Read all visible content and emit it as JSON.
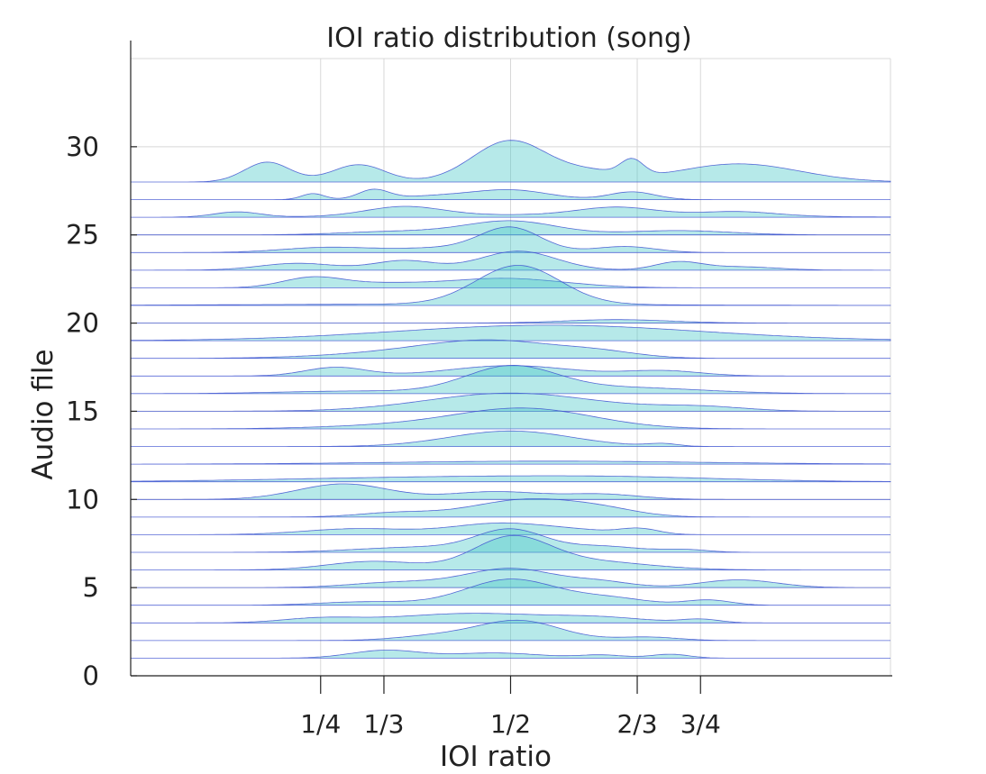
{
  "chart_data": {
    "type": "area",
    "subtype": "ridgeline",
    "title": "IOI ratio distribution (song)",
    "xlabel": "IOI ratio",
    "ylabel": "Audio file",
    "xlim": [
      0,
      1
    ],
    "ylim": [
      0,
      35
    ],
    "x_ticks": [
      {
        "value": 0.25,
        "label": "1/4"
      },
      {
        "value": 0.3333,
        "label": "1/3"
      },
      {
        "value": 0.5,
        "label": "1/2"
      },
      {
        "value": 0.6667,
        "label": "2/3"
      },
      {
        "value": 0.75,
        "label": "3/4"
      }
    ],
    "y_ticks": [
      0,
      5,
      10,
      15,
      20,
      25,
      30
    ],
    "grid": true,
    "fill_color": "#40c4c4",
    "line_color": "#3c50d0",
    "series": [
      {
        "file": 1,
        "peaks": [
          [
            0.335,
            0.045,
            0.9
          ],
          [
            0.48,
            0.06,
            0.6
          ],
          [
            0.62,
            0.03,
            0.35
          ],
          [
            0.71,
            0.025,
            0.45
          ]
        ]
      },
      {
        "file": 2,
        "peaks": [
          [
            0.51,
            0.055,
            2.3
          ],
          [
            0.4,
            0.05,
            0.5
          ],
          [
            0.68,
            0.04,
            0.4
          ]
        ]
      },
      {
        "file": 3,
        "peaks": [
          [
            0.25,
            0.05,
            0.5
          ],
          [
            0.45,
            0.1,
            1.1
          ],
          [
            0.62,
            0.06,
            0.5
          ],
          [
            0.75,
            0.025,
            0.4
          ]
        ]
      },
      {
        "file": 4,
        "peaks": [
          [
            0.5,
            0.06,
            3.0
          ],
          [
            0.31,
            0.06,
            0.4
          ],
          [
            0.63,
            0.05,
            0.8
          ],
          [
            0.76,
            0.03,
            0.6
          ]
        ]
      },
      {
        "file": 5,
        "peaks": [
          [
            0.5,
            0.06,
            2.2
          ],
          [
            0.62,
            0.04,
            0.6
          ],
          [
            0.8,
            0.05,
            0.9
          ],
          [
            0.35,
            0.06,
            0.6
          ]
        ]
      },
      {
        "file": 6,
        "peaks": [
          [
            0.5,
            0.05,
            3.5
          ],
          [
            0.6,
            0.08,
            1.0
          ],
          [
            0.32,
            0.06,
            1.0
          ]
        ]
      },
      {
        "file": 7,
        "peaks": [
          [
            0.5,
            0.045,
            2.5
          ],
          [
            0.38,
            0.08,
            0.6
          ],
          [
            0.62,
            0.05,
            0.7
          ],
          [
            0.73,
            0.03,
            0.3
          ]
        ]
      },
      {
        "file": 8,
        "peaks": [
          [
            0.3,
            0.07,
            0.7
          ],
          [
            0.48,
            0.06,
            1.2
          ],
          [
            0.67,
            0.025,
            0.6
          ],
          [
            0.58,
            0.06,
            0.5
          ]
        ]
      },
      {
        "file": 9,
        "peaks": [
          [
            0.52,
            0.07,
            2.0
          ],
          [
            0.62,
            0.05,
            0.7
          ],
          [
            0.35,
            0.05,
            0.5
          ]
        ]
      },
      {
        "file": 10,
        "peaks": [
          [
            0.28,
            0.06,
            1.8
          ],
          [
            0.48,
            0.06,
            0.9
          ],
          [
            0.62,
            0.05,
            0.6
          ]
        ]
      },
      {
        "file": 11,
        "peaks": [
          [
            0.4,
            0.2,
            0.5
          ],
          [
            0.65,
            0.15,
            0.4
          ]
        ]
      },
      {
        "file": 12,
        "peaks": [
          [
            0.55,
            0.2,
            0.35
          ]
        ]
      },
      {
        "file": 13,
        "peaks": [
          [
            0.5,
            0.08,
            1.8
          ],
          [
            0.7,
            0.02,
            0.3
          ]
        ]
      },
      {
        "file": 14,
        "peaks": [
          [
            0.52,
            0.09,
            2.3
          ],
          [
            0.36,
            0.1,
            0.4
          ]
        ]
      },
      {
        "file": 15,
        "peaks": [
          [
            0.5,
            0.11,
            2.1
          ],
          [
            0.75,
            0.06,
            0.5
          ]
        ]
      },
      {
        "file": 16,
        "peaks": [
          [
            0.5,
            0.06,
            3.0
          ],
          [
            0.65,
            0.1,
            0.7
          ],
          [
            0.3,
            0.1,
            0.3
          ]
        ]
      },
      {
        "file": 17,
        "peaks": [
          [
            0.27,
            0.04,
            1.0
          ],
          [
            0.5,
            0.08,
            1.2
          ],
          [
            0.7,
            0.05,
            0.6
          ]
        ]
      },
      {
        "file": 18,
        "peaks": [
          [
            0.48,
            0.09,
            1.9
          ],
          [
            0.62,
            0.05,
            0.5
          ],
          [
            0.35,
            0.1,
            0.5
          ]
        ]
      },
      {
        "file": 19,
        "peaks": [
          [
            0.55,
            0.2,
            1.8
          ]
        ]
      },
      {
        "file": 20,
        "peaks": [
          [
            0.64,
            0.07,
            0.4
          ]
        ]
      },
      {
        "file": 21,
        "peaks": [
          [
            0.51,
            0.055,
            4.5
          ],
          [
            0.4,
            0.25,
            0.15
          ]
        ]
      },
      {
        "file": 22,
        "peaks": [
          [
            0.24,
            0.04,
            1.2
          ],
          [
            0.33,
            0.05,
            0.4
          ],
          [
            0.49,
            0.08,
            1.1
          ]
        ]
      },
      {
        "file": 23,
        "peaks": [
          [
            0.36,
            0.04,
            1.1
          ],
          [
            0.22,
            0.05,
            0.8
          ],
          [
            0.51,
            0.05,
            2.2
          ],
          [
            0.72,
            0.03,
            0.9
          ],
          [
            0.8,
            0.05,
            0.4
          ]
        ]
      },
      {
        "file": 24,
        "peaks": [
          [
            0.5,
            0.04,
            2.8
          ],
          [
            0.26,
            0.06,
            0.6
          ],
          [
            0.41,
            0.06,
            0.5
          ],
          [
            0.65,
            0.04,
            0.7
          ]
        ]
      },
      {
        "file": 25,
        "peaks": [
          [
            0.5,
            0.06,
            1.6
          ],
          [
            0.35,
            0.07,
            0.4
          ],
          [
            0.72,
            0.07,
            0.5
          ]
        ]
      },
      {
        "file": 26,
        "peaks": [
          [
            0.14,
            0.03,
            0.6
          ],
          [
            0.36,
            0.05,
            1.1
          ],
          [
            0.64,
            0.05,
            0.9
          ],
          [
            0.58,
            0.2,
            0.3
          ],
          [
            0.8,
            0.05,
            0.5
          ]
        ]
      },
      {
        "file": 27,
        "peaks": [
          [
            0.24,
            0.015,
            0.7
          ],
          [
            0.32,
            0.02,
            1.1
          ],
          [
            0.4,
            0.05,
            0.4
          ],
          [
            0.5,
            0.05,
            1.1
          ],
          [
            0.66,
            0.03,
            0.9
          ]
        ]
      },
      {
        "file": 28,
        "peaks": [
          [
            0.18,
            0.03,
            2.3
          ],
          [
            0.3,
            0.035,
            2.0
          ],
          [
            0.5,
            0.05,
            4.8
          ],
          [
            0.61,
            0.04,
            1.0
          ],
          [
            0.66,
            0.015,
            1.8
          ],
          [
            0.8,
            0.08,
            2.1
          ]
        ]
      }
    ]
  }
}
